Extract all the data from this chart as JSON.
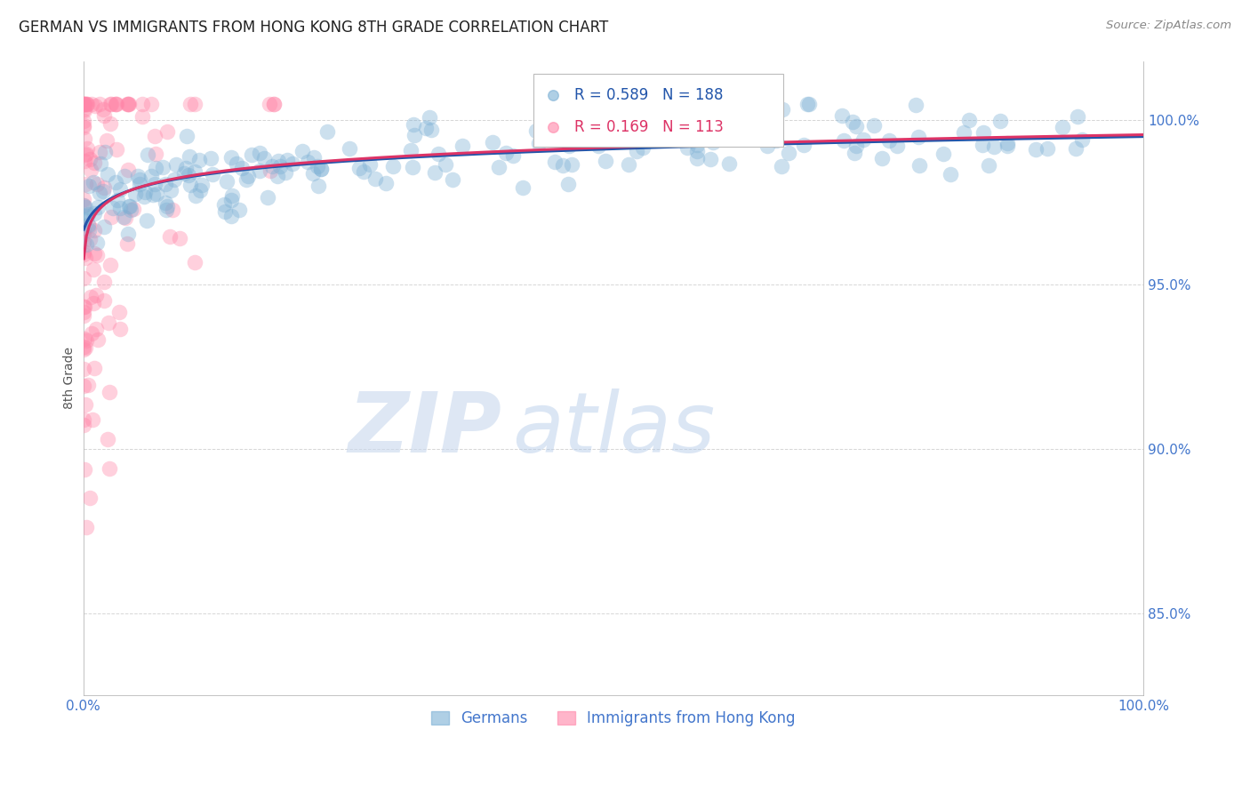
{
  "title": "GERMAN VS IMMIGRANTS FROM HONG KONG 8TH GRADE CORRELATION CHART",
  "source": "Source: ZipAtlas.com",
  "ylabel": "8th Grade",
  "ytick_labels": [
    "85.0%",
    "90.0%",
    "95.0%",
    "100.0%"
  ],
  "ytick_values": [
    0.85,
    0.9,
    0.95,
    1.0
  ],
  "xlim": [
    0.0,
    1.0
  ],
  "ylim": [
    0.825,
    1.018
  ],
  "legend_blue_label": "Germans",
  "legend_pink_label": "Immigrants from Hong Kong",
  "blue_R": "0.589",
  "blue_N": "188",
  "pink_R": "0.169",
  "pink_N": "113",
  "blue_color": "#7BAFD4",
  "pink_color": "#FF85A8",
  "blue_line_color": "#2255AA",
  "pink_line_color": "#DD3366",
  "watermark_zip": "ZIP",
  "watermark_atlas": "atlas",
  "title_fontsize": 12,
  "axis_label_color": "#4477CC",
  "grid_color": "#CCCCCC",
  "legend_box_color": "#AAAAAA"
}
